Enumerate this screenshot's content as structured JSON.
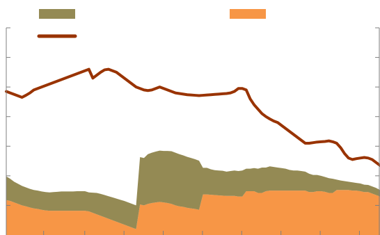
{
  "chart_data": {
    "type": "area",
    "title": "",
    "xlabel": "",
    "ylabel": "",
    "grid": false,
    "legend_placement": "top",
    "ylim": [
      0,
      7
    ],
    "x": [
      0,
      1,
      2,
      3,
      4,
      5,
      6,
      7,
      8,
      9,
      10,
      11,
      12,
      13,
      14,
      15,
      16,
      17,
      18,
      19,
      20,
      21,
      22,
      23,
      24,
      25,
      26,
      27,
      28,
      29,
      30,
      31,
      32,
      33,
      34,
      35,
      36,
      37,
      38,
      39,
      40,
      41,
      42,
      43,
      44,
      45,
      46,
      47,
      48,
      49,
      50,
      51,
      52,
      53,
      54,
      55,
      56,
      57,
      58,
      59,
      60,
      61,
      62,
      63,
      64,
      65,
      66,
      67,
      68,
      69,
      70,
      71,
      72,
      73,
      74,
      75,
      76,
      77,
      78,
      79,
      80,
      81,
      82,
      83,
      84,
      85,
      86,
      87,
      88,
      89,
      90,
      91,
      92,
      93,
      94,
      95
    ],
    "series": [
      {
        "name": "",
        "type": "area",
        "stack": "base",
        "color": "#f79646",
        "values": [
          1.18,
          1.15,
          1.1,
          1.05,
          1.0,
          0.97,
          0.93,
          0.9,
          0.88,
          0.85,
          0.83,
          0.82,
          0.82,
          0.82,
          0.82,
          0.82,
          0.82,
          0.82,
          0.82,
          0.82,
          0.82,
          0.8,
          0.75,
          0.7,
          0.65,
          0.6,
          0.55,
          0.5,
          0.45,
          0.4,
          0.35,
          0.3,
          0.25,
          0.2,
          1.03,
          1.0,
          1.05,
          1.08,
          1.1,
          1.12,
          1.1,
          1.08,
          1.05,
          1.0,
          0.97,
          0.95,
          0.92,
          0.9,
          0.88,
          0.85,
          1.37,
          1.37,
          1.36,
          1.35,
          1.34,
          1.33,
          1.32,
          1.32,
          1.32,
          1.3,
          1.3,
          1.48,
          1.48,
          1.48,
          1.42,
          1.42,
          1.48,
          1.5,
          1.5,
          1.5,
          1.5,
          1.5,
          1.5,
          1.5,
          1.5,
          1.5,
          1.5,
          1.45,
          1.45,
          1.48,
          1.48,
          1.46,
          1.42,
          1.42,
          1.52,
          1.52,
          1.52,
          1.52,
          1.5,
          1.5,
          1.48,
          1.45,
          1.45,
          1.4,
          1.35,
          1.3
        ]
      },
      {
        "name": "",
        "type": "area",
        "stack": "base",
        "color": "#948a54",
        "values": [
          0.8,
          0.75,
          0.7,
          0.68,
          0.66,
          0.64,
          0.63,
          0.62,
          0.62,
          0.62,
          0.62,
          0.62,
          0.63,
          0.64,
          0.65,
          0.65,
          0.65,
          0.65,
          0.66,
          0.66,
          0.66,
          0.64,
          0.68,
          0.72,
          0.74,
          0.75,
          0.76,
          0.77,
          0.78,
          0.79,
          0.8,
          0.8,
          0.8,
          0.8,
          1.6,
          1.6,
          1.68,
          1.7,
          1.72,
          1.73,
          1.74,
          1.76,
          1.78,
          1.78,
          1.76,
          1.74,
          1.72,
          1.7,
          1.68,
          1.66,
          0.9,
          0.9,
          0.86,
          0.84,
          0.84,
          0.84,
          0.82,
          0.84,
          0.86,
          0.86,
          0.88,
          0.76,
          0.76,
          0.78,
          0.82,
          0.86,
          0.8,
          0.82,
          0.8,
          0.78,
          0.76,
          0.74,
          0.7,
          0.68,
          0.68,
          0.66,
          0.64,
          0.62,
          0.58,
          0.55,
          0.52,
          0.5,
          0.5,
          0.48,
          0.35,
          0.32,
          0.3,
          0.28,
          0.28,
          0.26,
          0.26,
          0.25,
          0.24,
          0.24,
          0.24,
          0.22
        ]
      },
      {
        "name": "",
        "type": "line",
        "color": "#993300",
        "values": [
          4.85,
          4.8,
          4.75,
          4.7,
          4.65,
          4.72,
          4.8,
          4.9,
          4.95,
          5.0,
          5.05,
          5.1,
          5.15,
          5.2,
          5.25,
          5.3,
          5.35,
          5.4,
          5.45,
          5.5,
          5.55,
          5.6,
          5.3,
          5.4,
          5.5,
          5.58,
          5.6,
          5.55,
          5.5,
          5.4,
          5.3,
          5.2,
          5.1,
          5.0,
          4.95,
          4.9,
          4.88,
          4.9,
          4.95,
          5.0,
          4.95,
          4.9,
          4.85,
          4.8,
          4.78,
          4.76,
          4.74,
          4.73,
          4.72,
          4.71,
          4.72,
          4.73,
          4.74,
          4.75,
          4.76,
          4.77,
          4.78,
          4.8,
          4.85,
          4.95,
          4.95,
          4.9,
          4.6,
          4.4,
          4.25,
          4.1,
          4.0,
          3.92,
          3.85,
          3.8,
          3.7,
          3.6,
          3.5,
          3.4,
          3.3,
          3.2,
          3.1,
          3.1,
          3.12,
          3.14,
          3.15,
          3.16,
          3.18,
          3.15,
          3.1,
          2.95,
          2.75,
          2.6,
          2.55,
          2.58,
          2.6,
          2.62,
          2.6,
          2.55,
          2.45,
          2.35
        ]
      }
    ],
    "legend": [
      {
        "label": "",
        "color": "#948a54",
        "kind": "box"
      },
      {
        "label": "",
        "color": "#f79646",
        "kind": "box"
      },
      {
        "label": "",
        "color": "#993300",
        "kind": "line"
      }
    ]
  }
}
